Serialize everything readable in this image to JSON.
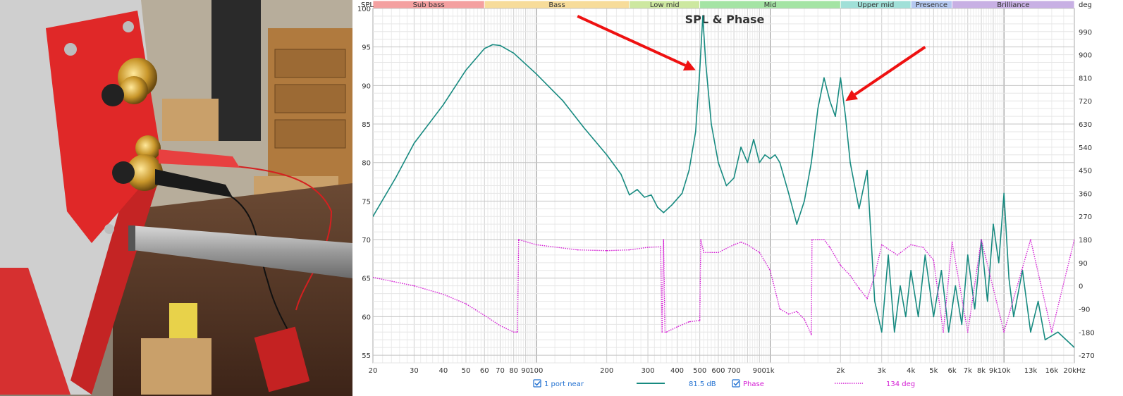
{
  "photo": {
    "description_icon": "speaker-measurement-photo"
  },
  "chart_data": {
    "type": "line",
    "title": "SPL & Phase",
    "x_scale": "log",
    "xlim": [
      20,
      20000
    ],
    "ylim": [
      54,
      100
    ],
    "y2lim": [
      -300,
      1080
    ],
    "y_unit": "SPL",
    "y2_unit": "deg",
    "x_ticks": [
      {
        "v": 20,
        "l": "20"
      },
      {
        "v": 30,
        "l": "30"
      },
      {
        "v": 40,
        "l": "40"
      },
      {
        "v": 50,
        "l": "50"
      },
      {
        "v": 60,
        "l": "60"
      },
      {
        "v": 70,
        "l": "70"
      },
      {
        "v": 80,
        "l": "80"
      },
      {
        "v": 90,
        "l": "90"
      },
      {
        "v": 100,
        "l": "100"
      },
      {
        "v": 200,
        "l": "200"
      },
      {
        "v": 300,
        "l": "300"
      },
      {
        "v": 400,
        "l": "400"
      },
      {
        "v": 500,
        "l": "500"
      },
      {
        "v": 600,
        "l": "600"
      },
      {
        "v": 700,
        "l": "700"
      },
      {
        "v": 900,
        "l": "900"
      },
      {
        "v": 1000,
        "l": "1k"
      },
      {
        "v": 2000,
        "l": "2k"
      },
      {
        "v": 3000,
        "l": "3k"
      },
      {
        "v": 4000,
        "l": "4k"
      },
      {
        "v": 5000,
        "l": "5k"
      },
      {
        "v": 6000,
        "l": "6k"
      },
      {
        "v": 7000,
        "l": "7k"
      },
      {
        "v": 8000,
        "l": "8k"
      },
      {
        "v": 9000,
        "l": "9k"
      },
      {
        "v": 10000,
        "l": "10k"
      },
      {
        "v": 13000,
        "l": "13k"
      },
      {
        "v": 16000,
        "l": "16k"
      },
      {
        "v": 20000,
        "l": "20kHz"
      }
    ],
    "y_ticks": [
      55,
      60,
      65,
      70,
      75,
      80,
      85,
      90,
      95,
      100
    ],
    "y2_ticks": [
      -270,
      -180,
      -90,
      0,
      90,
      180,
      270,
      360,
      450,
      540,
      630,
      720,
      810,
      900,
      990
    ],
    "bands": [
      {
        "name": "Sub bass",
        "from": 20,
        "to": 60,
        "color": "#f4a0a0"
      },
      {
        "name": "Bass",
        "from": 60,
        "to": 250,
        "color": "#f7dc9a"
      },
      {
        "name": "Low mid",
        "from": 250,
        "to": 500,
        "color": "#cde8a0"
      },
      {
        "name": "Mid",
        "from": 500,
        "to": 2000,
        "color": "#a4e4a4"
      },
      {
        "name": "Upper mid",
        "from": 2000,
        "to": 4000,
        "color": "#a0e0d8"
      },
      {
        "name": "Presence",
        "from": 4000,
        "to": 6000,
        "color": "#b4c8f0"
      },
      {
        "name": "Brilliance",
        "from": 6000,
        "to": 20000,
        "color": "#c8b0e4"
      }
    ],
    "series": [
      {
        "name": "1 port near",
        "axis": "left",
        "color": "#178a80",
        "points": [
          [
            20,
            73
          ],
          [
            25,
            78
          ],
          [
            30,
            82.5
          ],
          [
            40,
            87.5
          ],
          [
            50,
            92
          ],
          [
            60,
            94.8
          ],
          [
            65,
            95.3
          ],
          [
            70,
            95.2
          ],
          [
            80,
            94.2
          ],
          [
            100,
            91.5
          ],
          [
            130,
            88
          ],
          [
            160,
            84.5
          ],
          [
            200,
            81
          ],
          [
            230,
            78.5
          ],
          [
            250,
            75.8
          ],
          [
            270,
            76.5
          ],
          [
            290,
            75.5
          ],
          [
            310,
            75.8
          ],
          [
            330,
            74.2
          ],
          [
            350,
            73.5
          ],
          [
            380,
            74.5
          ],
          [
            420,
            76
          ],
          [
            450,
            79
          ],
          [
            480,
            84
          ],
          [
            500,
            92
          ],
          [
            515,
            99
          ],
          [
            530,
            93
          ],
          [
            560,
            85
          ],
          [
            600,
            80
          ],
          [
            650,
            77
          ],
          [
            700,
            78
          ],
          [
            750,
            82
          ],
          [
            800,
            80
          ],
          [
            850,
            83
          ],
          [
            900,
            80
          ],
          [
            950,
            81
          ],
          [
            1000,
            80.5
          ],
          [
            1050,
            81
          ],
          [
            1100,
            80
          ],
          [
            1200,
            76
          ],
          [
            1300,
            72
          ],
          [
            1400,
            75
          ],
          [
            1500,
            80
          ],
          [
            1600,
            87
          ],
          [
            1700,
            91
          ],
          [
            1800,
            88
          ],
          [
            1900,
            86
          ],
          [
            2000,
            91
          ],
          [
            2100,
            86
          ],
          [
            2200,
            80
          ],
          [
            2400,
            74
          ],
          [
            2600,
            79
          ],
          [
            2800,
            62
          ],
          [
            3000,
            58
          ],
          [
            3200,
            68
          ],
          [
            3400,
            58
          ],
          [
            3600,
            64
          ],
          [
            3800,
            60
          ],
          [
            4000,
            66
          ],
          [
            4300,
            60
          ],
          [
            4600,
            68
          ],
          [
            5000,
            60
          ],
          [
            5400,
            66
          ],
          [
            5800,
            58
          ],
          [
            6200,
            64
          ],
          [
            6600,
            59
          ],
          [
            7000,
            68
          ],
          [
            7500,
            61
          ],
          [
            8000,
            70
          ],
          [
            8500,
            62
          ],
          [
            9000,
            72
          ],
          [
            9500,
            67
          ],
          [
            10000,
            76
          ],
          [
            10500,
            65
          ],
          [
            11000,
            60
          ],
          [
            12000,
            66
          ],
          [
            13000,
            58
          ],
          [
            14000,
            62
          ],
          [
            15000,
            57
          ],
          [
            17000,
            58
          ],
          [
            20000,
            56
          ]
        ]
      },
      {
        "name": "Phase",
        "axis": "right",
        "color": "#d41ed4",
        "dotted": true,
        "points": [
          [
            20,
            33
          ],
          [
            30,
            0
          ],
          [
            40,
            -33
          ],
          [
            50,
            -70
          ],
          [
            60,
            -115
          ],
          [
            70,
            -155
          ],
          [
            80,
            -180
          ],
          [
            83,
            -180
          ],
          [
            84,
            180
          ],
          [
            100,
            160
          ],
          [
            150,
            140
          ],
          [
            200,
            137
          ],
          [
            250,
            140
          ],
          [
            300,
            150
          ],
          [
            340,
            152
          ],
          [
            345,
            -180
          ],
          [
            350,
            180
          ],
          [
            355,
            -180
          ],
          [
            360,
            -180
          ],
          [
            400,
            -160
          ],
          [
            450,
            -140
          ],
          [
            500,
            -135
          ],
          [
            505,
            180
          ],
          [
            520,
            130
          ],
          [
            600,
            130
          ],
          [
            700,
            160
          ],
          [
            750,
            170
          ],
          [
            800,
            160
          ],
          [
            900,
            130
          ],
          [
            1000,
            60
          ],
          [
            1100,
            -90
          ],
          [
            1200,
            -110
          ],
          [
            1300,
            -100
          ],
          [
            1400,
            -130
          ],
          [
            1500,
            -190
          ],
          [
            1510,
            180
          ],
          [
            1600,
            180
          ],
          [
            1700,
            180
          ],
          [
            1800,
            150
          ],
          [
            2000,
            80
          ],
          [
            2200,
            40
          ],
          [
            2400,
            -10
          ],
          [
            2600,
            -50
          ],
          [
            2800,
            40
          ],
          [
            3000,
            160
          ],
          [
            3500,
            120
          ],
          [
            4000,
            160
          ],
          [
            4500,
            150
          ],
          [
            5000,
            100
          ],
          [
            5500,
            -180
          ],
          [
            6000,
            170
          ],
          [
            7000,
            -180
          ],
          [
            8000,
            180
          ],
          [
            10000,
            -180
          ],
          [
            13000,
            180
          ],
          [
            16000,
            -180
          ],
          [
            20000,
            180
          ]
        ]
      }
    ],
    "legend": {
      "series1_label": "1 port near",
      "series1_value": "81.5 dB",
      "series2_label": "Phase",
      "series2_value": "134 deg"
    },
    "annotations": [
      {
        "type": "arrow",
        "color": "#ee1111",
        "from_freq": 150,
        "from_spl": 99,
        "to_freq": 480,
        "to_spl": 92
      },
      {
        "type": "arrow",
        "color": "#ee1111",
        "from_freq": 4600,
        "from_spl": 95,
        "to_freq": 2100,
        "to_spl": 88
      }
    ]
  }
}
